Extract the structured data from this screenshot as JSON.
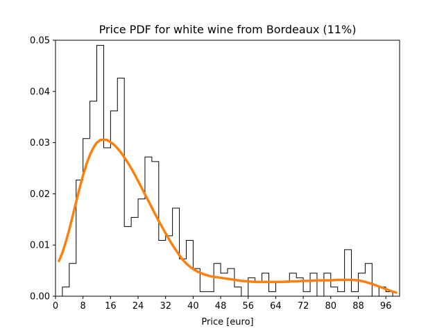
{
  "chart_data": {
    "type": "histogram+line",
    "title": "Price PDF for white wine from Bordeaux (11%)",
    "xlabel": "Price [euro]",
    "ylabel": "",
    "xlim": [
      0,
      100
    ],
    "ylim": [
      0,
      0.05
    ],
    "xticks": [
      0,
      8,
      16,
      24,
      32,
      40,
      48,
      56,
      64,
      72,
      80,
      88,
      96
    ],
    "yticks": [
      0.0,
      0.01,
      0.02,
      0.03,
      0.04,
      0.05
    ],
    "ytick_labels": [
      "0.00",
      "0.01",
      "0.02",
      "0.03",
      "0.04",
      "0.05"
    ],
    "grid": false,
    "histogram": {
      "color": "#000000",
      "edges": [
        2,
        4,
        6,
        8,
        10,
        12,
        14,
        16,
        18,
        20,
        22,
        24,
        26,
        28,
        30,
        32,
        34,
        36,
        38,
        40,
        42,
        44,
        46,
        48,
        50,
        52,
        54,
        56,
        58,
        60,
        62,
        64,
        66,
        68,
        70,
        72,
        74,
        76,
        78,
        80,
        82,
        84,
        86,
        88,
        90,
        92,
        94,
        96,
        98
      ],
      "values": [
        0.0018,
        0.0064,
        0.0227,
        0.0308,
        0.0381,
        0.049,
        0.029,
        0.0362,
        0.0426,
        0.0136,
        0.0154,
        0.019,
        0.0272,
        0.0263,
        0.0109,
        0.0118,
        0.0172,
        0.0073,
        0.0109,
        0.0054,
        0.0009,
        0.0009,
        0.0064,
        0.0045,
        0.0054,
        0.0018,
        0.0,
        0.0036,
        0.0027,
        0.0045,
        0.0009,
        0.0027,
        0.0027,
        0.0045,
        0.0036,
        0.0009,
        0.0045,
        0.0,
        0.0045,
        0.0018,
        0.0009,
        0.0091,
        0.0009,
        0.0045,
        0.0064,
        0.0,
        0.0018,
        0.0009
      ]
    },
    "kde": {
      "color": "#ff7f0e",
      "x": [
        1,
        2,
        3,
        4,
        5,
        6,
        7,
        8,
        9,
        10,
        11,
        12,
        13,
        14,
        15,
        16,
        17,
        18,
        19,
        20,
        21,
        22,
        23,
        24,
        25,
        26,
        27,
        28,
        29,
        30,
        31,
        32,
        33,
        34,
        35,
        36,
        37,
        38,
        39,
        40,
        41,
        42,
        43,
        44,
        45,
        46,
        47,
        48,
        50,
        52,
        54,
        56,
        58,
        60,
        62,
        64,
        66,
        68,
        70,
        72,
        74,
        76,
        78,
        80,
        82,
        84,
        86,
        88,
        90,
        92,
        94,
        96,
        98,
        99
      ],
      "y": [
        0.0069,
        0.0085,
        0.0106,
        0.013,
        0.0157,
        0.0184,
        0.0211,
        0.0236,
        0.0258,
        0.0276,
        0.029,
        0.03,
        0.0305,
        0.0306,
        0.0305,
        0.0301,
        0.0296,
        0.0289,
        0.0281,
        0.0271,
        0.0261,
        0.025,
        0.0238,
        0.0225,
        0.0212,
        0.0199,
        0.0186,
        0.0173,
        0.016,
        0.0147,
        0.0135,
        0.0123,
        0.0111,
        0.01,
        0.009,
        0.008,
        0.0071,
        0.0064,
        0.0058,
        0.0053,
        0.0049,
        0.0046,
        0.0043,
        0.0041,
        0.0039,
        0.0038,
        0.0037,
        0.0036,
        0.0034,
        0.0032,
        0.003,
        0.0029,
        0.0028,
        0.0028,
        0.0028,
        0.0028,
        0.0028,
        0.0029,
        0.0029,
        0.003,
        0.003,
        0.0031,
        0.0031,
        0.0031,
        0.0032,
        0.0032,
        0.0032,
        0.0031,
        0.0028,
        0.0024,
        0.0019,
        0.0014,
        0.0009,
        0.0007
      ]
    }
  }
}
